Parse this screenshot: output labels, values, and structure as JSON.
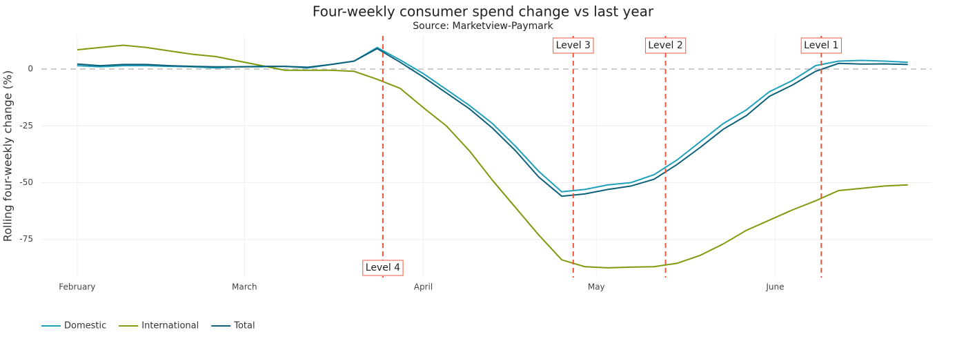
{
  "chart_data": {
    "type": "line",
    "title": "Four-weekly consumer spend change vs last year",
    "subtitle": "Source: Marketview-Paymark",
    "y_label": "Rolling four-weekly change (%)",
    "x": [
      0,
      4,
      8,
      12,
      16,
      20,
      24,
      28,
      32,
      36,
      40,
      44,
      48,
      52,
      56,
      60,
      64,
      68,
      72,
      76,
      80,
      84,
      88,
      92,
      96,
      100,
      104,
      108,
      112,
      116,
      120,
      124,
      128,
      132,
      136,
      140,
      144
    ],
    "series": [
      {
        "name": "Domestic",
        "color": "#1ea0bb",
        "values": [
          1.5,
          1,
          1.5,
          1.5,
          1.2,
          1,
          0.5,
          1,
          1,
          1.2,
          0.5,
          2,
          3.5,
          9.5,
          4,
          -2,
          -9,
          -16,
          -24,
          -34,
          -45,
          -54,
          -53,
          -51,
          -50,
          -46.5,
          -40,
          -32,
          -24,
          -18,
          -10,
          -5,
          1.5,
          3.5,
          3.8,
          3.5,
          3
        ]
      },
      {
        "name": "International",
        "color": "#7d9a0c",
        "values": [
          8.5,
          9.5,
          10.5,
          9.5,
          8,
          6.5,
          5.5,
          3.5,
          1.5,
          -0.5,
          -0.5,
          -0.5,
          -1,
          -4.5,
          -8.5,
          -17,
          -25,
          -36,
          -49,
          -61,
          -73,
          -84,
          -87,
          -87.5,
          -87.2,
          -87,
          -85.5,
          -82,
          -77,
          -71,
          -66.5,
          -62,
          -58,
          -53.5,
          -52.5,
          -51.5,
          -51
        ]
      },
      {
        "name": "Total",
        "color": "#0c6079",
        "values": [
          2.2,
          1.5,
          2,
          2,
          1.5,
          1.2,
          1,
          1,
          1.2,
          1.2,
          0.8,
          2,
          3.5,
          9,
          3,
          -3.5,
          -10.5,
          -17.5,
          -26,
          -36,
          -47.5,
          -56,
          -55,
          -53,
          -51.5,
          -48.5,
          -42,
          -34.5,
          -26.5,
          -20.5,
          -12,
          -7,
          -1,
          2.5,
          2.2,
          2.3,
          2
        ]
      }
    ],
    "xlim": [
      -6.2,
      148.1
    ],
    "xticks": [
      {
        "value": 0,
        "label": "February"
      },
      {
        "value": 29,
        "label": "March"
      },
      {
        "value": 60,
        "label": "April"
      },
      {
        "value": 90,
        "label": "May"
      },
      {
        "value": 121,
        "label": "June"
      }
    ],
    "ylim": [
      -91.8,
      14.6
    ],
    "yticks": [
      -75,
      -50,
      -25,
      0
    ],
    "grid": true,
    "zeroline": true,
    "legend": "bottom-left",
    "annotations": [
      {
        "x": 53,
        "label": "Level 4",
        "position": "bottom"
      },
      {
        "x": 86,
        "label": "Level 3",
        "position": "top"
      },
      {
        "x": 102,
        "label": "Level 2",
        "position": "top"
      },
      {
        "x": 129,
        "label": "Level 1",
        "position": "top"
      }
    ],
    "annotation_color": "#ef553b"
  }
}
